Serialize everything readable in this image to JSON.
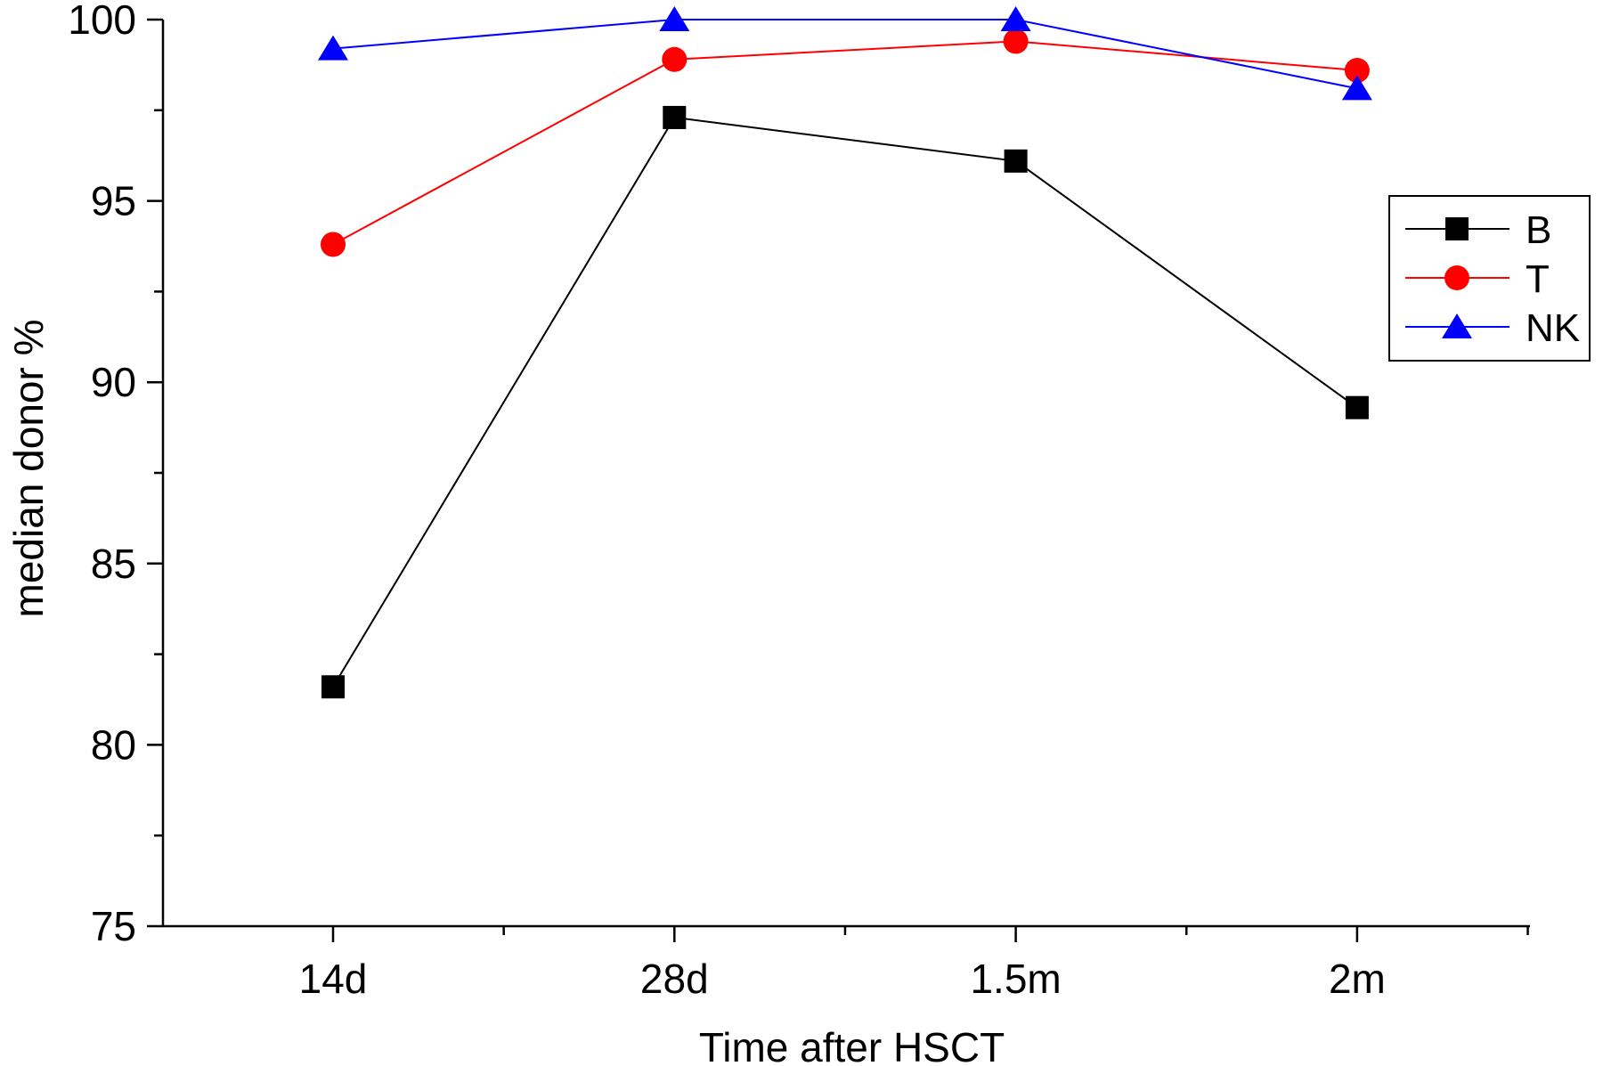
{
  "chart_data": {
    "type": "line",
    "categories": [
      "14d",
      "28d",
      "1.5m",
      "2m"
    ],
    "xlabel": "Time after HSCT",
    "ylabel": "median donor %",
    "ylim": [
      75,
      100
    ],
    "yticks": [
      75,
      80,
      85,
      90,
      95,
      100
    ],
    "grid": false,
    "legend_position": "right",
    "series": [
      {
        "name": "B",
        "values": [
          81.6,
          97.3,
          96.1,
          89.3
        ],
        "color": "#000000",
        "marker": "square"
      },
      {
        "name": "T",
        "values": [
          93.8,
          98.9,
          99.4,
          98.6
        ],
        "color": "#ff0000",
        "marker": "circle"
      },
      {
        "name": "NK",
        "values": [
          99.2,
          100.0,
          100.0,
          98.1
        ],
        "color": "#0000ff",
        "marker": "triangle"
      }
    ]
  }
}
